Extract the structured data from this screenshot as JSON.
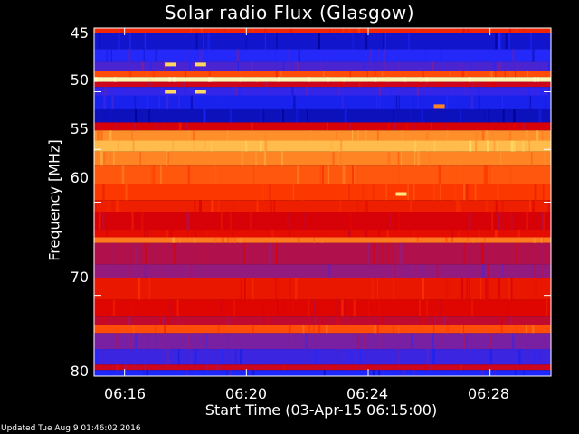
{
  "chart_data": {
    "type": "heatmap",
    "title": "Solar radio Flux (Glasgow)",
    "xlabel": "Start Time (03-Apr-15 06:15:00)",
    "ylabel": "Frequency [MHz]",
    "x_ticks": [
      "06:16",
      "06:20",
      "06:24",
      "06:28"
    ],
    "y_ticks": [
      "45",
      "50",
      "55",
      "60",
      "70",
      "80"
    ],
    "ylim": [
      45,
      80
    ],
    "y_scale": "log",
    "xlim": [
      "06:15:00",
      "06:30:00"
    ],
    "colormap": [
      "#00008c",
      "#1e28ff",
      "#8c1e8c",
      "#dc0000",
      "#ff3c00",
      "#ff8c28",
      "#ffdc64",
      "#ffffc8"
    ],
    "bands": [
      {
        "from": 45.0,
        "to": 45.4,
        "level": 0.52
      },
      {
        "from": 45.4,
        "to": 46.6,
        "level": 0.08
      },
      {
        "from": 46.6,
        "to": 47.6,
        "level": 0.15
      },
      {
        "from": 47.6,
        "to": 48.3,
        "level": 0.2
      },
      {
        "from": 48.3,
        "to": 48.8,
        "level": 0.6
      },
      {
        "from": 48.8,
        "to": 49.2,
        "level": 0.97
      },
      {
        "from": 49.2,
        "to": 49.6,
        "level": 0.4
      },
      {
        "from": 49.6,
        "to": 50.3,
        "level": 0.17
      },
      {
        "from": 50.3,
        "to": 51.4,
        "level": 0.12
      },
      {
        "from": 51.4,
        "to": 52.6,
        "level": 0.06
      },
      {
        "from": 52.6,
        "to": 53.3,
        "level": 0.42
      },
      {
        "from": 53.3,
        "to": 54.2,
        "level": 0.72
      },
      {
        "from": 54.2,
        "to": 55.2,
        "level": 0.8
      },
      {
        "from": 55.2,
        "to": 56.5,
        "level": 0.7
      },
      {
        "from": 56.5,
        "to": 58.2,
        "level": 0.62
      },
      {
        "from": 58.2,
        "to": 59.8,
        "level": 0.56
      },
      {
        "from": 59.8,
        "to": 61.0,
        "level": 0.5
      },
      {
        "from": 61.0,
        "to": 62.8,
        "level": 0.42
      },
      {
        "from": 62.8,
        "to": 63.6,
        "level": 0.46
      },
      {
        "from": 63.6,
        "to": 64.2,
        "level": 0.68
      },
      {
        "from": 64.2,
        "to": 66.5,
        "level": 0.35
      },
      {
        "from": 66.5,
        "to": 68.0,
        "level": 0.3
      },
      {
        "from": 68.0,
        "to": 70.5,
        "level": 0.48
      },
      {
        "from": 70.5,
        "to": 72.5,
        "level": 0.44
      },
      {
        "from": 72.5,
        "to": 73.5,
        "level": 0.38
      },
      {
        "from": 73.5,
        "to": 74.5,
        "level": 0.6
      },
      {
        "from": 74.5,
        "to": 76.5,
        "level": 0.26
      },
      {
        "from": 76.5,
        "to": 78.5,
        "level": 0.18
      },
      {
        "from": 78.5,
        "to": 79.2,
        "level": 0.4
      },
      {
        "from": 79.2,
        "to": 80.0,
        "level": 0.14
      }
    ],
    "bursts": [
      {
        "time": "06:17:30",
        "freq": 47.8,
        "level": 0.85
      },
      {
        "time": "06:17:30",
        "freq": 50.0,
        "level": 0.85
      },
      {
        "time": "06:18:30",
        "freq": 47.8,
        "level": 0.85
      },
      {
        "time": "06:18:30",
        "freq": 50.0,
        "level": 0.85
      },
      {
        "time": "06:25:05",
        "freq": 59.2,
        "level": 0.9
      },
      {
        "time": "06:26:20",
        "freq": 51.2,
        "level": 0.7
      }
    ]
  },
  "footer": {
    "updated_text": "Updated Tue Aug  9 01:46:02 2016"
  }
}
